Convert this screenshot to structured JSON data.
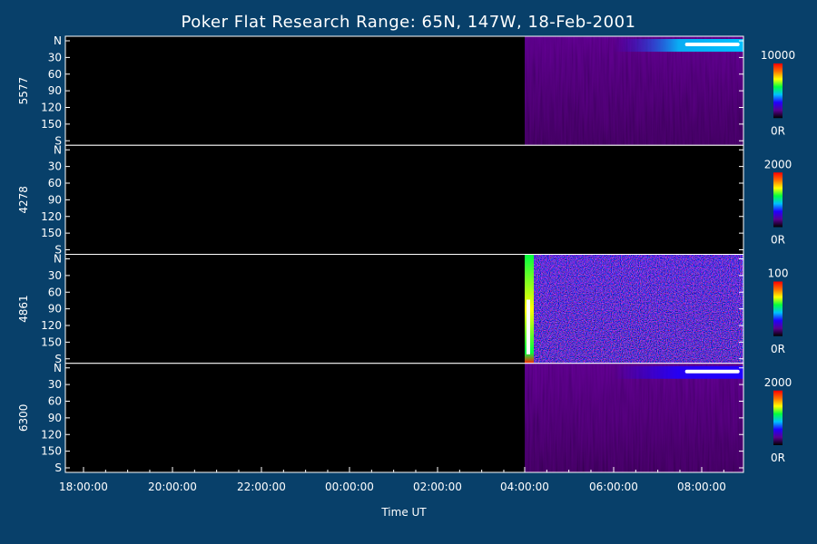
{
  "chart_data": {
    "type": "heatmap",
    "title": "Poker Flat Research Range: 65N, 147W, 18-Feb-2001",
    "xlabel": "Time UT",
    "x_ticks": [
      "18:00:00",
      "20:00:00",
      "22:00:00",
      "00:00:00",
      "02:00:00",
      "04:00:00",
      "06:00:00",
      "08:00:00"
    ],
    "y_ticks": [
      "N",
      "30",
      "60",
      "90",
      "120",
      "150",
      "S"
    ],
    "data_start_tick": "04:00:00",
    "colorscale": [
      "#000000",
      "#5a0090",
      "#2000ff",
      "#00c0ff",
      "#00ff40",
      "#ffff00",
      "#ff7000",
      "#ff0000"
    ],
    "panels": [
      {
        "ylabel": "5577",
        "cbar_max": "10000",
        "cbar_min": "0R",
        "background_level": 0.12,
        "bright_band": {
          "band": "north",
          "from_tick": "06:00:00",
          "level": 0.95
        },
        "noise": "low"
      },
      {
        "ylabel": "4278",
        "cbar_max": "2000",
        "cbar_min": "0R",
        "background_level": 0.04,
        "bright_band": null,
        "noise": "very-low"
      },
      {
        "ylabel": "4861",
        "cbar_max": "100",
        "cbar_min": "0R",
        "background_level": 0.25,
        "bright_band": null,
        "noise": "speckled",
        "edge_flare": true
      },
      {
        "ylabel": "6300",
        "cbar_max": "2000",
        "cbar_min": "0R",
        "background_level": 0.18,
        "bright_band": {
          "band": "north",
          "from_tick": "06:00:00",
          "level": 0.7
        },
        "noise": "low"
      }
    ]
  }
}
